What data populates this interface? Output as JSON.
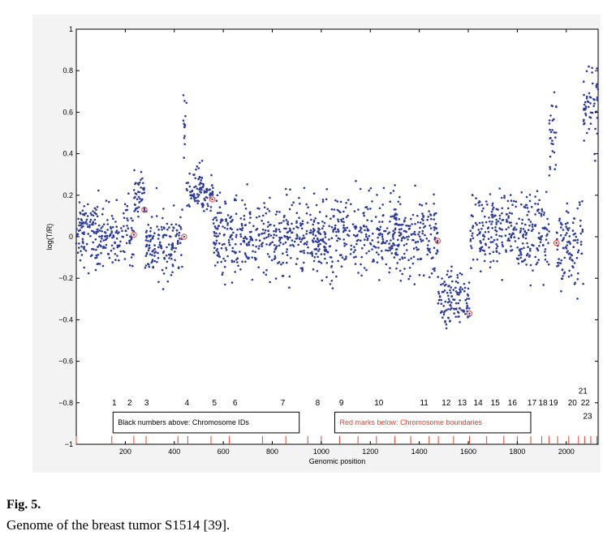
{
  "chart_data": {
    "type": "scatter",
    "title": "",
    "xlabel": "Genomic position",
    "ylabel": "log(T/R)",
    "xlim": [
      0,
      2130
    ],
    "ylim": [
      -1,
      1
    ],
    "xticks": [
      200,
      400,
      600,
      800,
      1000,
      1200,
      1400,
      1600,
      1800,
      2000
    ],
    "yticks": [
      -1,
      -0.8,
      -0.6,
      -0.4,
      -0.2,
      0,
      0.2,
      0.4,
      0.6,
      0.8,
      1
    ],
    "ytick_labels": [
      "−1",
      "−0.8",
      "−0.6",
      "−0.4",
      "−0.2",
      "0",
      "0.2",
      "0.4",
      "0.6",
      "0.8",
      "1"
    ],
    "grid": false,
    "point_color": "#2b3a9e",
    "marker_color": "#e8402a",
    "boundary_color": "#e8402a",
    "chromosome_segments": [
      {
        "chrom": "1",
        "start": 0,
        "end": 235,
        "mean": 0.0,
        "sd": 0.08
      },
      {
        "chrom": "2",
        "start": 235,
        "end": 280,
        "mean": 0.2,
        "sd": 0.06
      },
      {
        "chrom": "3",
        "start": 280,
        "end": 435,
        "mean": -0.03,
        "sd": 0.08
      },
      {
        "chrom": "4a",
        "start": 435,
        "end": 450,
        "mean": 0.5,
        "sd": 0.12
      },
      {
        "chrom": "4b",
        "start": 450,
        "end": 560,
        "mean": 0.22,
        "sd": 0.06
      },
      {
        "chrom": "5",
        "start": 560,
        "end": 1475,
        "mean": 0.0,
        "sd": 0.09
      },
      {
        "chrom": "12",
        "start": 1475,
        "end": 1605,
        "mean": -0.3,
        "sd": 0.07
      },
      {
        "chrom": "14",
        "start": 1605,
        "end": 1930,
        "mean": 0.03,
        "sd": 0.09
      },
      {
        "chrom": "19",
        "start": 1930,
        "end": 1960,
        "mean": 0.45,
        "sd": 0.1
      },
      {
        "chrom": "20",
        "start": 1960,
        "end": 2070,
        "mean": -0.05,
        "sd": 0.1
      },
      {
        "chrom": "21-23",
        "start": 2070,
        "end": 2130,
        "mean": 0.6,
        "sd": 0.1
      }
    ],
    "highlighted_points": [
      {
        "x": 235,
        "y": 0.01
      },
      {
        "x": 278,
        "y": 0.13
      },
      {
        "x": 440,
        "y": 0.0
      },
      {
        "x": 555,
        "y": 0.18
      },
      {
        "x": 1475,
        "y": -0.02
      },
      {
        "x": 1605,
        "y": -0.37
      },
      {
        "x": 1960,
        "y": -0.03
      }
    ],
    "chromosome_ids": [
      {
        "label": "1",
        "x": 155,
        "y": -0.8
      },
      {
        "label": "2",
        "x": 218,
        "y": -0.8
      },
      {
        "label": "3",
        "x": 287,
        "y": -0.8
      },
      {
        "label": "4",
        "x": 452,
        "y": -0.8
      },
      {
        "label": "5",
        "x": 564,
        "y": -0.8
      },
      {
        "label": "6",
        "x": 648,
        "y": -0.8
      },
      {
        "label": "7",
        "x": 843,
        "y": -0.8
      },
      {
        "label": "8",
        "x": 985,
        "y": -0.8
      },
      {
        "label": "9",
        "x": 1082,
        "y": -0.8
      },
      {
        "label": "10",
        "x": 1235,
        "y": -0.8
      },
      {
        "label": "11",
        "x": 1420,
        "y": -0.8
      },
      {
        "label": "12",
        "x": 1510,
        "y": -0.8
      },
      {
        "label": "13",
        "x": 1575,
        "y": -0.8
      },
      {
        "label": "14",
        "x": 1640,
        "y": -0.8
      },
      {
        "label": "15",
        "x": 1710,
        "y": -0.8
      },
      {
        "label": "16",
        "x": 1780,
        "y": -0.8
      },
      {
        "label": "17",
        "x": 1860,
        "y": -0.8
      },
      {
        "label": "18",
        "x": 1905,
        "y": -0.8
      },
      {
        "label": "19",
        "x": 1948,
        "y": -0.8
      },
      {
        "label": "20",
        "x": 2025,
        "y": -0.8
      },
      {
        "label": "21",
        "x": 2068,
        "y": -0.745
      },
      {
        "label": "22",
        "x": 2078,
        "y": -0.8
      },
      {
        "label": "23",
        "x": 2087,
        "y": -0.865
      }
    ],
    "chromosome_boundaries": [
      0,
      145,
      235,
      285,
      415,
      455,
      550,
      625,
      760,
      855,
      945,
      1000,
      1075,
      1150,
      1225,
      1300,
      1365,
      1440,
      1478,
      1540,
      1605,
      1675,
      1745,
      1800,
      1855,
      1900,
      1930,
      1965,
      2010,
      2050,
      2075,
      2100,
      2125
    ],
    "legend_boxes": [
      {
        "text": "Black numbers above: Chromosome IDs",
        "color": "#000000",
        "x0": 150,
        "x1": 910,
        "y0": -0.945,
        "y1": -0.845
      },
      {
        "text": "Red marks below: Chromosome boundaries",
        "color": "#e8402a",
        "x0": 1055,
        "x1": 1855,
        "y0": -0.945,
        "y1": -0.845
      }
    ]
  },
  "caption": {
    "label": "Fig. 5.",
    "text": "Genome of the breast tumor S1514 [39]."
  }
}
